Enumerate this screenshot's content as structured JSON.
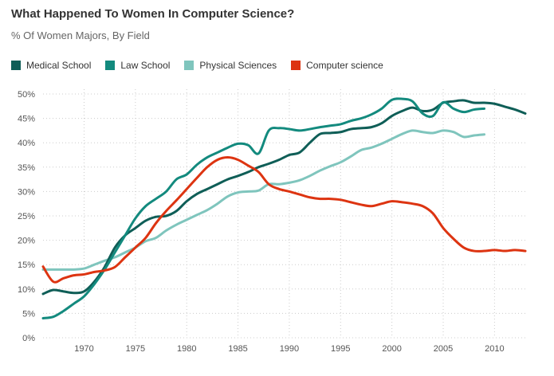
{
  "chart_data": {
    "type": "line",
    "title": "What Happened To Women In Computer Science?",
    "subtitle": "% Of Women Majors, By Field",
    "xlabel": "",
    "ylabel": "",
    "xlim": [
      1966,
      2013
    ],
    "ylim": [
      0,
      50
    ],
    "grid": true,
    "legend": "top-left",
    "y_ticks": [
      0,
      5,
      10,
      15,
      20,
      25,
      30,
      35,
      40,
      45,
      50
    ],
    "y_tick_labels": [
      "0%",
      "5%",
      "10%",
      "15%",
      "20%",
      "25%",
      "30%",
      "35%",
      "40%",
      "45%",
      "50%"
    ],
    "x_ticks": [
      1970,
      1975,
      1980,
      1985,
      1990,
      1995,
      2000,
      2005,
      2010
    ],
    "x_tick_labels": [
      "1970",
      "1975",
      "1980",
      "1985",
      "1990",
      "1995",
      "2000",
      "2005",
      "2010"
    ],
    "series": [
      {
        "name": "Medical School",
        "color": "#0f5e57",
        "x": [
          1966,
          1967,
          1968,
          1969,
          1970,
          1971,
          1972,
          1973,
          1974,
          1975,
          1976,
          1977,
          1978,
          1979,
          1980,
          1981,
          1982,
          1983,
          1984,
          1985,
          1986,
          1987,
          1988,
          1989,
          1990,
          1991,
          1992,
          1993,
          1994,
          1995,
          1996,
          1997,
          1998,
          1999,
          2000,
          2001,
          2002,
          2003,
          2004,
          2005,
          2006,
          2007,
          2008,
          2009,
          2010,
          2011,
          2012,
          2013
        ],
        "values": [
          9,
          9.8,
          9.5,
          9.2,
          9.5,
          11.5,
          14.5,
          18.5,
          21,
          22.5,
          24,
          24.8,
          25,
          26,
          28,
          29.5,
          30.5,
          31.5,
          32.5,
          33.2,
          34,
          35,
          35.7,
          36.5,
          37.5,
          38,
          40,
          41.8,
          42,
          42.2,
          42.8,
          43,
          43.2,
          44,
          45.5,
          46.5,
          47.2,
          46.5,
          46.8,
          48.2,
          48.5,
          48.7,
          48.2,
          48.2,
          48,
          47.4,
          46.8,
          46
        ]
      },
      {
        "name": "Law School",
        "color": "#138a7e",
        "x": [
          1966,
          1967,
          1968,
          1969,
          1970,
          1971,
          1972,
          1973,
          1974,
          1975,
          1976,
          1977,
          1978,
          1979,
          1980,
          1981,
          1982,
          1983,
          1984,
          1985,
          1986,
          1987,
          1988,
          1989,
          1990,
          1991,
          1992,
          1993,
          1994,
          1995,
          1996,
          1997,
          1998,
          1999,
          2000,
          2001,
          2002,
          2003,
          2004,
          2005,
          2006,
          2007,
          2008,
          2009
        ],
        "values": [
          4,
          4.3,
          5.5,
          7,
          8.5,
          11,
          14,
          17.5,
          21,
          24.5,
          27,
          28.5,
          30,
          32.5,
          33.5,
          35.5,
          37,
          38,
          39,
          39.8,
          39.5,
          37.8,
          42.5,
          43,
          42.8,
          42.5,
          42.8,
          43.2,
          43.5,
          43.8,
          44.5,
          45,
          45.8,
          47,
          48.8,
          49,
          48.5,
          46,
          45.5,
          48.3,
          47,
          46.3,
          46.8,
          47
        ]
      },
      {
        "name": "Physical Sciences",
        "color": "#7fc5bd",
        "x": [
          1966,
          1967,
          1968,
          1969,
          1970,
          1971,
          1972,
          1973,
          1974,
          1975,
          1976,
          1977,
          1978,
          1979,
          1980,
          1981,
          1982,
          1983,
          1984,
          1985,
          1986,
          1987,
          1988,
          1989,
          1990,
          1991,
          1992,
          1993,
          1994,
          1995,
          1996,
          1997,
          1998,
          1999,
          2000,
          2001,
          2002,
          2003,
          2004,
          2005,
          2006,
          2007,
          2008,
          2009
        ],
        "values": [
          14,
          14,
          14,
          14,
          14.2,
          15,
          15.8,
          16.5,
          17.5,
          18.5,
          19.8,
          20.5,
          22,
          23.2,
          24.2,
          25.2,
          26.2,
          27.5,
          29,
          29.8,
          30,
          30.2,
          31.5,
          31.5,
          31.8,
          32.3,
          33.2,
          34.3,
          35.2,
          36,
          37.2,
          38.5,
          39,
          39.8,
          40.8,
          41.8,
          42.5,
          42.2,
          42,
          42.5,
          42.2,
          41.2,
          41.5,
          41.7
        ]
      },
      {
        "name": "Computer science",
        "color": "#dd3411",
        "x": [
          1966,
          1967,
          1968,
          1969,
          1970,
          1971,
          1972,
          1973,
          1974,
          1975,
          1976,
          1977,
          1978,
          1979,
          1980,
          1981,
          1982,
          1983,
          1984,
          1985,
          1986,
          1987,
          1988,
          1989,
          1990,
          1991,
          1992,
          1993,
          1994,
          1995,
          1996,
          1997,
          1998,
          1999,
          2000,
          2001,
          2002,
          2003,
          2004,
          2005,
          2006,
          2007,
          2008,
          2009,
          2010,
          2011,
          2012,
          2013
        ],
        "values": [
          14.6,
          11.5,
          12.2,
          12.8,
          13,
          13.5,
          13.8,
          14.5,
          16.5,
          18.5,
          20.5,
          23.5,
          26,
          28.2,
          30.5,
          32.8,
          35,
          36.5,
          37,
          36.5,
          35.3,
          34,
          31.5,
          30.5,
          30,
          29.4,
          28.8,
          28.5,
          28.5,
          28.3,
          27.8,
          27.3,
          27,
          27.5,
          28,
          27.8,
          27.5,
          27,
          25.5,
          22.5,
          20.3,
          18.5,
          17.8,
          17.8,
          18,
          17.8,
          18,
          17.8
        ]
      }
    ]
  }
}
